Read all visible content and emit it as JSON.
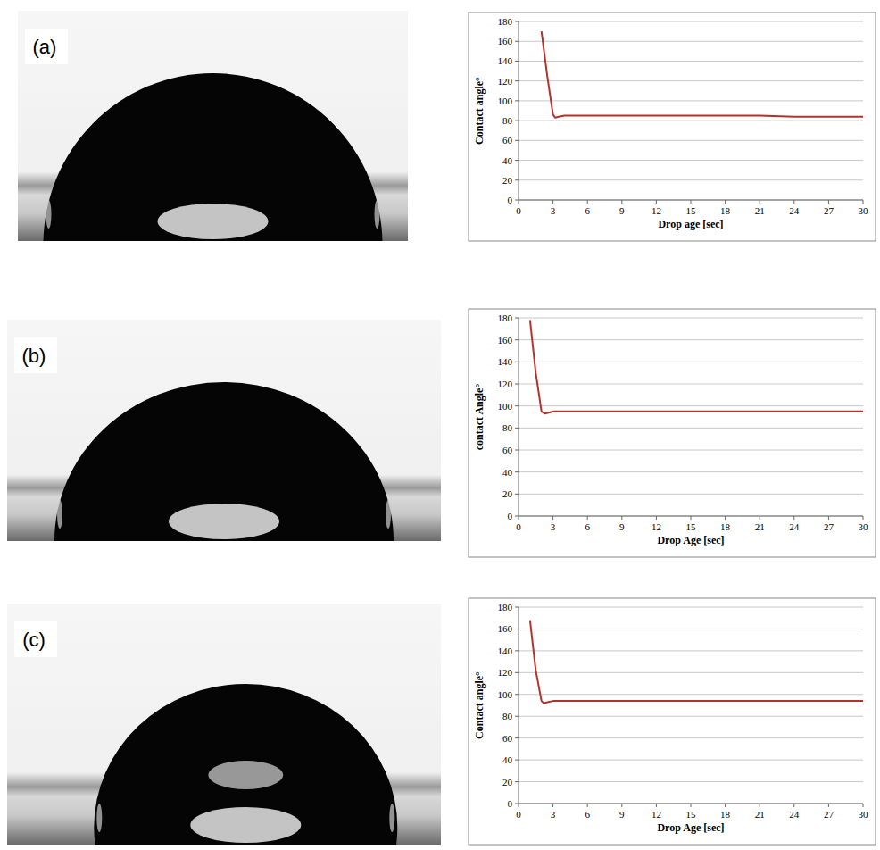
{
  "panel_labels": [
    "(a)",
    "(b)",
    "(c)"
  ],
  "chart_data": [
    {
      "type": "line",
      "y_label": "Contact angle°",
      "x_label": "Drop age [sec]",
      "x": [
        2,
        2.5,
        3,
        3.2,
        3.5,
        4,
        6,
        9,
        12,
        15,
        18,
        21,
        24,
        27,
        30
      ],
      "values": [
        170,
        125,
        86,
        83,
        84,
        85,
        85,
        85,
        85,
        85,
        85,
        85,
        84,
        84,
        84
      ],
      "color": "#b5322c",
      "xlim": [
        0,
        30
      ],
      "xticks": [
        0,
        3,
        6,
        9,
        12,
        15,
        18,
        21,
        24,
        27,
        30
      ],
      "ylim": [
        0,
        180
      ],
      "yticks": [
        0,
        20,
        40,
        60,
        80,
        100,
        120,
        140,
        160,
        180
      ],
      "grid": true
    },
    {
      "type": "line",
      "y_label": "contact Angle°",
      "x_label": "Drop Age [sec]",
      "x": [
        1,
        1.5,
        2,
        2.3,
        2.7,
        3,
        6,
        9,
        12,
        15,
        18,
        21,
        24,
        27,
        30
      ],
      "values": [
        178,
        130,
        95,
        93,
        94,
        95,
        95,
        95,
        95,
        95,
        95,
        95,
        95,
        95,
        95
      ],
      "color": "#b5322c",
      "xlim": [
        0,
        30
      ],
      "xticks": [
        0,
        3,
        6,
        9,
        12,
        15,
        18,
        21,
        24,
        27,
        30
      ],
      "ylim": [
        0,
        180
      ],
      "yticks": [
        0,
        20,
        40,
        60,
        80,
        100,
        120,
        140,
        160,
        180
      ],
      "grid": true
    },
    {
      "type": "line",
      "y_label": "Contact angle°",
      "x_label": "Drop Age [sec]",
      "x": [
        1,
        1.5,
        2,
        2.2,
        2.6,
        3,
        6,
        9,
        12,
        15,
        18,
        21,
        24,
        27,
        30
      ],
      "values": [
        168,
        122,
        94,
        92,
        93,
        94,
        94,
        94,
        94,
        94,
        94,
        94,
        94,
        94,
        94
      ],
      "color": "#b5322c",
      "xlim": [
        0,
        30
      ],
      "xticks": [
        0,
        3,
        6,
        9,
        12,
        15,
        18,
        21,
        24,
        27,
        30
      ],
      "ylim": [
        0,
        180
      ],
      "yticks": [
        0,
        20,
        40,
        60,
        80,
        100,
        120,
        140,
        160,
        180
      ],
      "grid": true
    }
  ]
}
